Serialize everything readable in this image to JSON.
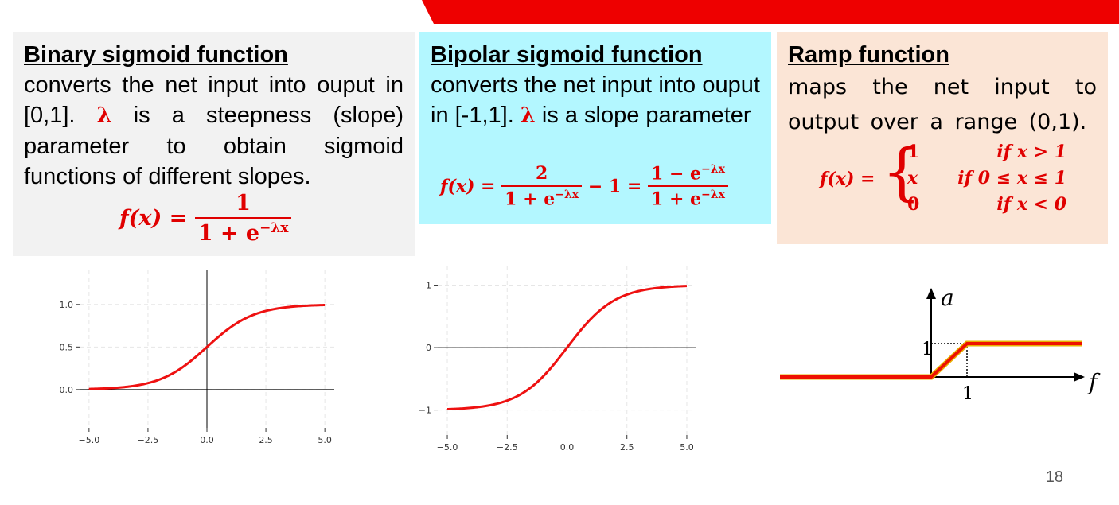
{
  "colors": {
    "accent_red": "#e00000",
    "banner_red": "#ee0000",
    "panel_gray": "#f2f2f2",
    "panel_cyan": "#b3f7ff",
    "panel_peach": "#fbe5d6"
  },
  "binary": {
    "title": "Binary sigmoid function",
    "text_before_lambda": "converts the net input into ouput in [0,1].",
    "lambda": "λ",
    "text_after_lambda": "is a steepness (slope) parameter to obtain sigmoid functions of different slopes.",
    "formula": {
      "lhs": "f(x) =",
      "num": "1",
      "den": "1 + e",
      "den_exp": "−λx"
    }
  },
  "bipolar": {
    "title": "Bipolar sigmoid function",
    "text_before_lambda": "converts the net input into ouput in [-1,1].",
    "lambda": "λ",
    "text_after_lambda": "is a slope parameter",
    "formula": {
      "lhs": "f(x) =",
      "num1": "2",
      "den1": "1 + e",
      "den1_exp": "−λx",
      "mid": "− 1 =",
      "num2": "1 − e",
      "num2_exp": "−λx",
      "den2": "1 + e",
      "den2_exp": "−λx"
    }
  },
  "ramp": {
    "title": "Ramp function",
    "text": "maps the net input to output over a range (0,1).",
    "formula": {
      "lhs": "f(x) =",
      "cases": [
        {
          "value": "1",
          "cond": "if x > 1"
        },
        {
          "value": "x",
          "cond": "if 0 ≤ x ≤ 1"
        },
        {
          "value": "0",
          "cond": "if x < 0"
        }
      ]
    },
    "plot_labels": {
      "y_axis": "a",
      "x_axis": "f",
      "y_one": "1",
      "x_one": "1"
    }
  },
  "chart_data": [
    {
      "type": "line",
      "name": "binary-sigmoid-plot",
      "function": "1/(1+exp(-x))",
      "x": [
        -5,
        -4,
        -3,
        -2,
        -1,
        0,
        1,
        2,
        3,
        4,
        5
      ],
      "y": [
        0.0067,
        0.018,
        0.047,
        0.119,
        0.269,
        0.5,
        0.731,
        0.881,
        0.953,
        0.982,
        0.9933
      ],
      "xlim": [
        -5.4,
        5.4
      ],
      "ylim": [
        -0.45,
        1.4
      ],
      "xticks": [
        "−5.0",
        "−2.5",
        "0.0",
        "2.5",
        "5.0"
      ],
      "xtick_values": [
        -5,
        -2.5,
        0,
        2.5,
        5
      ],
      "yticks": [
        "0.0",
        "0.5",
        "1.0"
      ],
      "ytick_values": [
        0,
        0.5,
        1
      ],
      "grid": true,
      "line_color": "#ee1111"
    },
    {
      "type": "line",
      "name": "bipolar-sigmoid-plot",
      "function": "2/(1+exp(-x))-1",
      "x": [
        -5,
        -4,
        -3,
        -2,
        -1,
        0,
        1,
        2,
        3,
        4,
        5
      ],
      "y": [
        -0.9866,
        -0.964,
        -0.905,
        -0.762,
        -0.462,
        0,
        0.462,
        0.762,
        0.905,
        0.964,
        0.9866
      ],
      "xlim": [
        -5.4,
        5.4
      ],
      "ylim": [
        -1.4,
        1.3
      ],
      "xticks": [
        "−5.0",
        "−2.5",
        "0.0",
        "2.5",
        "5.0"
      ],
      "xtick_values": [
        -5,
        -2.5,
        0,
        2.5,
        5
      ],
      "yticks": [
        "−1",
        "0",
        "1"
      ],
      "ytick_values": [
        -1,
        0,
        1
      ],
      "grid": true,
      "line_color": "#ee1111"
    }
  ],
  "page_number": "18"
}
